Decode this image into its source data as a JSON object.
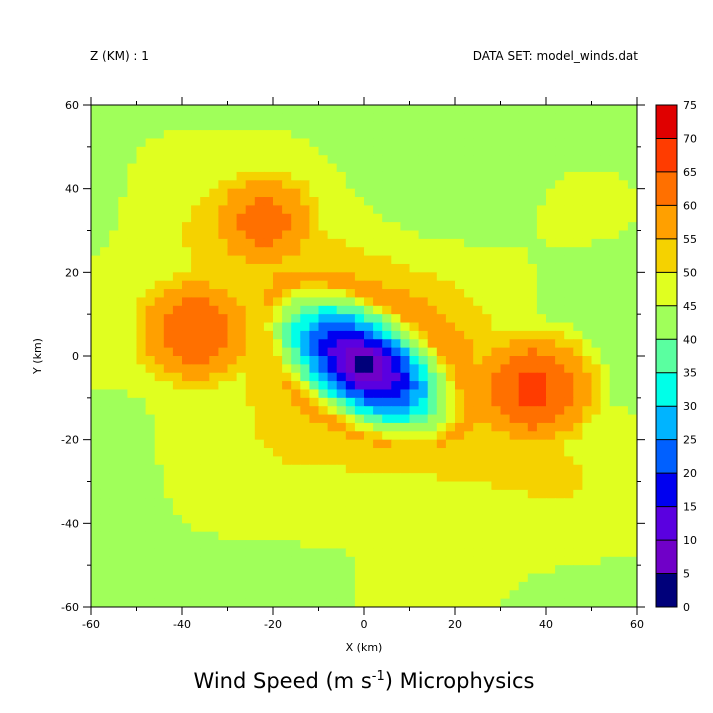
{
  "header": {
    "z_label": "Z (KM) : 1",
    "dataset_label": "DATA SET: model_winds.dat"
  },
  "chart_data": {
    "type": "heatmap",
    "title": {
      "main": "Wind Speed (m s",
      "superscript": "-1",
      "suffix": ") Microphysics"
    },
    "xlabel": "X (km)",
    "ylabel": "Y (km)",
    "xlim": [
      -60,
      60
    ],
    "ylim": [
      -60,
      60
    ],
    "xticks": [
      -60,
      -40,
      -20,
      0,
      20,
      40,
      60
    ],
    "yticks": [
      -60,
      -40,
      -20,
      0,
      20,
      40,
      60
    ],
    "field": {
      "center": [
        0,
        -2
      ],
      "rmw_x": 26,
      "rmw_y": 15,
      "rotation_deg": -37,
      "vmax": 57,
      "eye_speed": 2,
      "ambient_speed": 42,
      "decay_scale": 1.1,
      "secondary_maxima": [
        {
          "x": 37,
          "y": -8,
          "speed": 66
        },
        {
          "x": -37,
          "y": 6,
          "speed": 64
        },
        {
          "x": -22,
          "y": 32,
          "speed": 62
        }
      ]
    },
    "colorbar": {
      "levels": [
        0,
        5,
        10,
        15,
        20,
        25,
        30,
        35,
        40,
        45,
        50,
        55,
        60,
        65,
        70,
        75
      ],
      "tick_labels": [
        "0",
        "5",
        "10",
        "15",
        "20",
        "25",
        "30",
        "35",
        "40",
        "45",
        "50",
        "55",
        "60",
        "65",
        "70",
        "75"
      ],
      "colors": [
        "#00007a",
        "#7000c8",
        "#5a00e0",
        "#0000f0",
        "#0060ff",
        "#00b4ff",
        "#00ffe8",
        "#5affa0",
        "#a0ff5a",
        "#e0ff20",
        "#f5d200",
        "#ffa000",
        "#ff7000",
        "#ff3c00",
        "#e00000",
        "#a00000"
      ]
    }
  }
}
